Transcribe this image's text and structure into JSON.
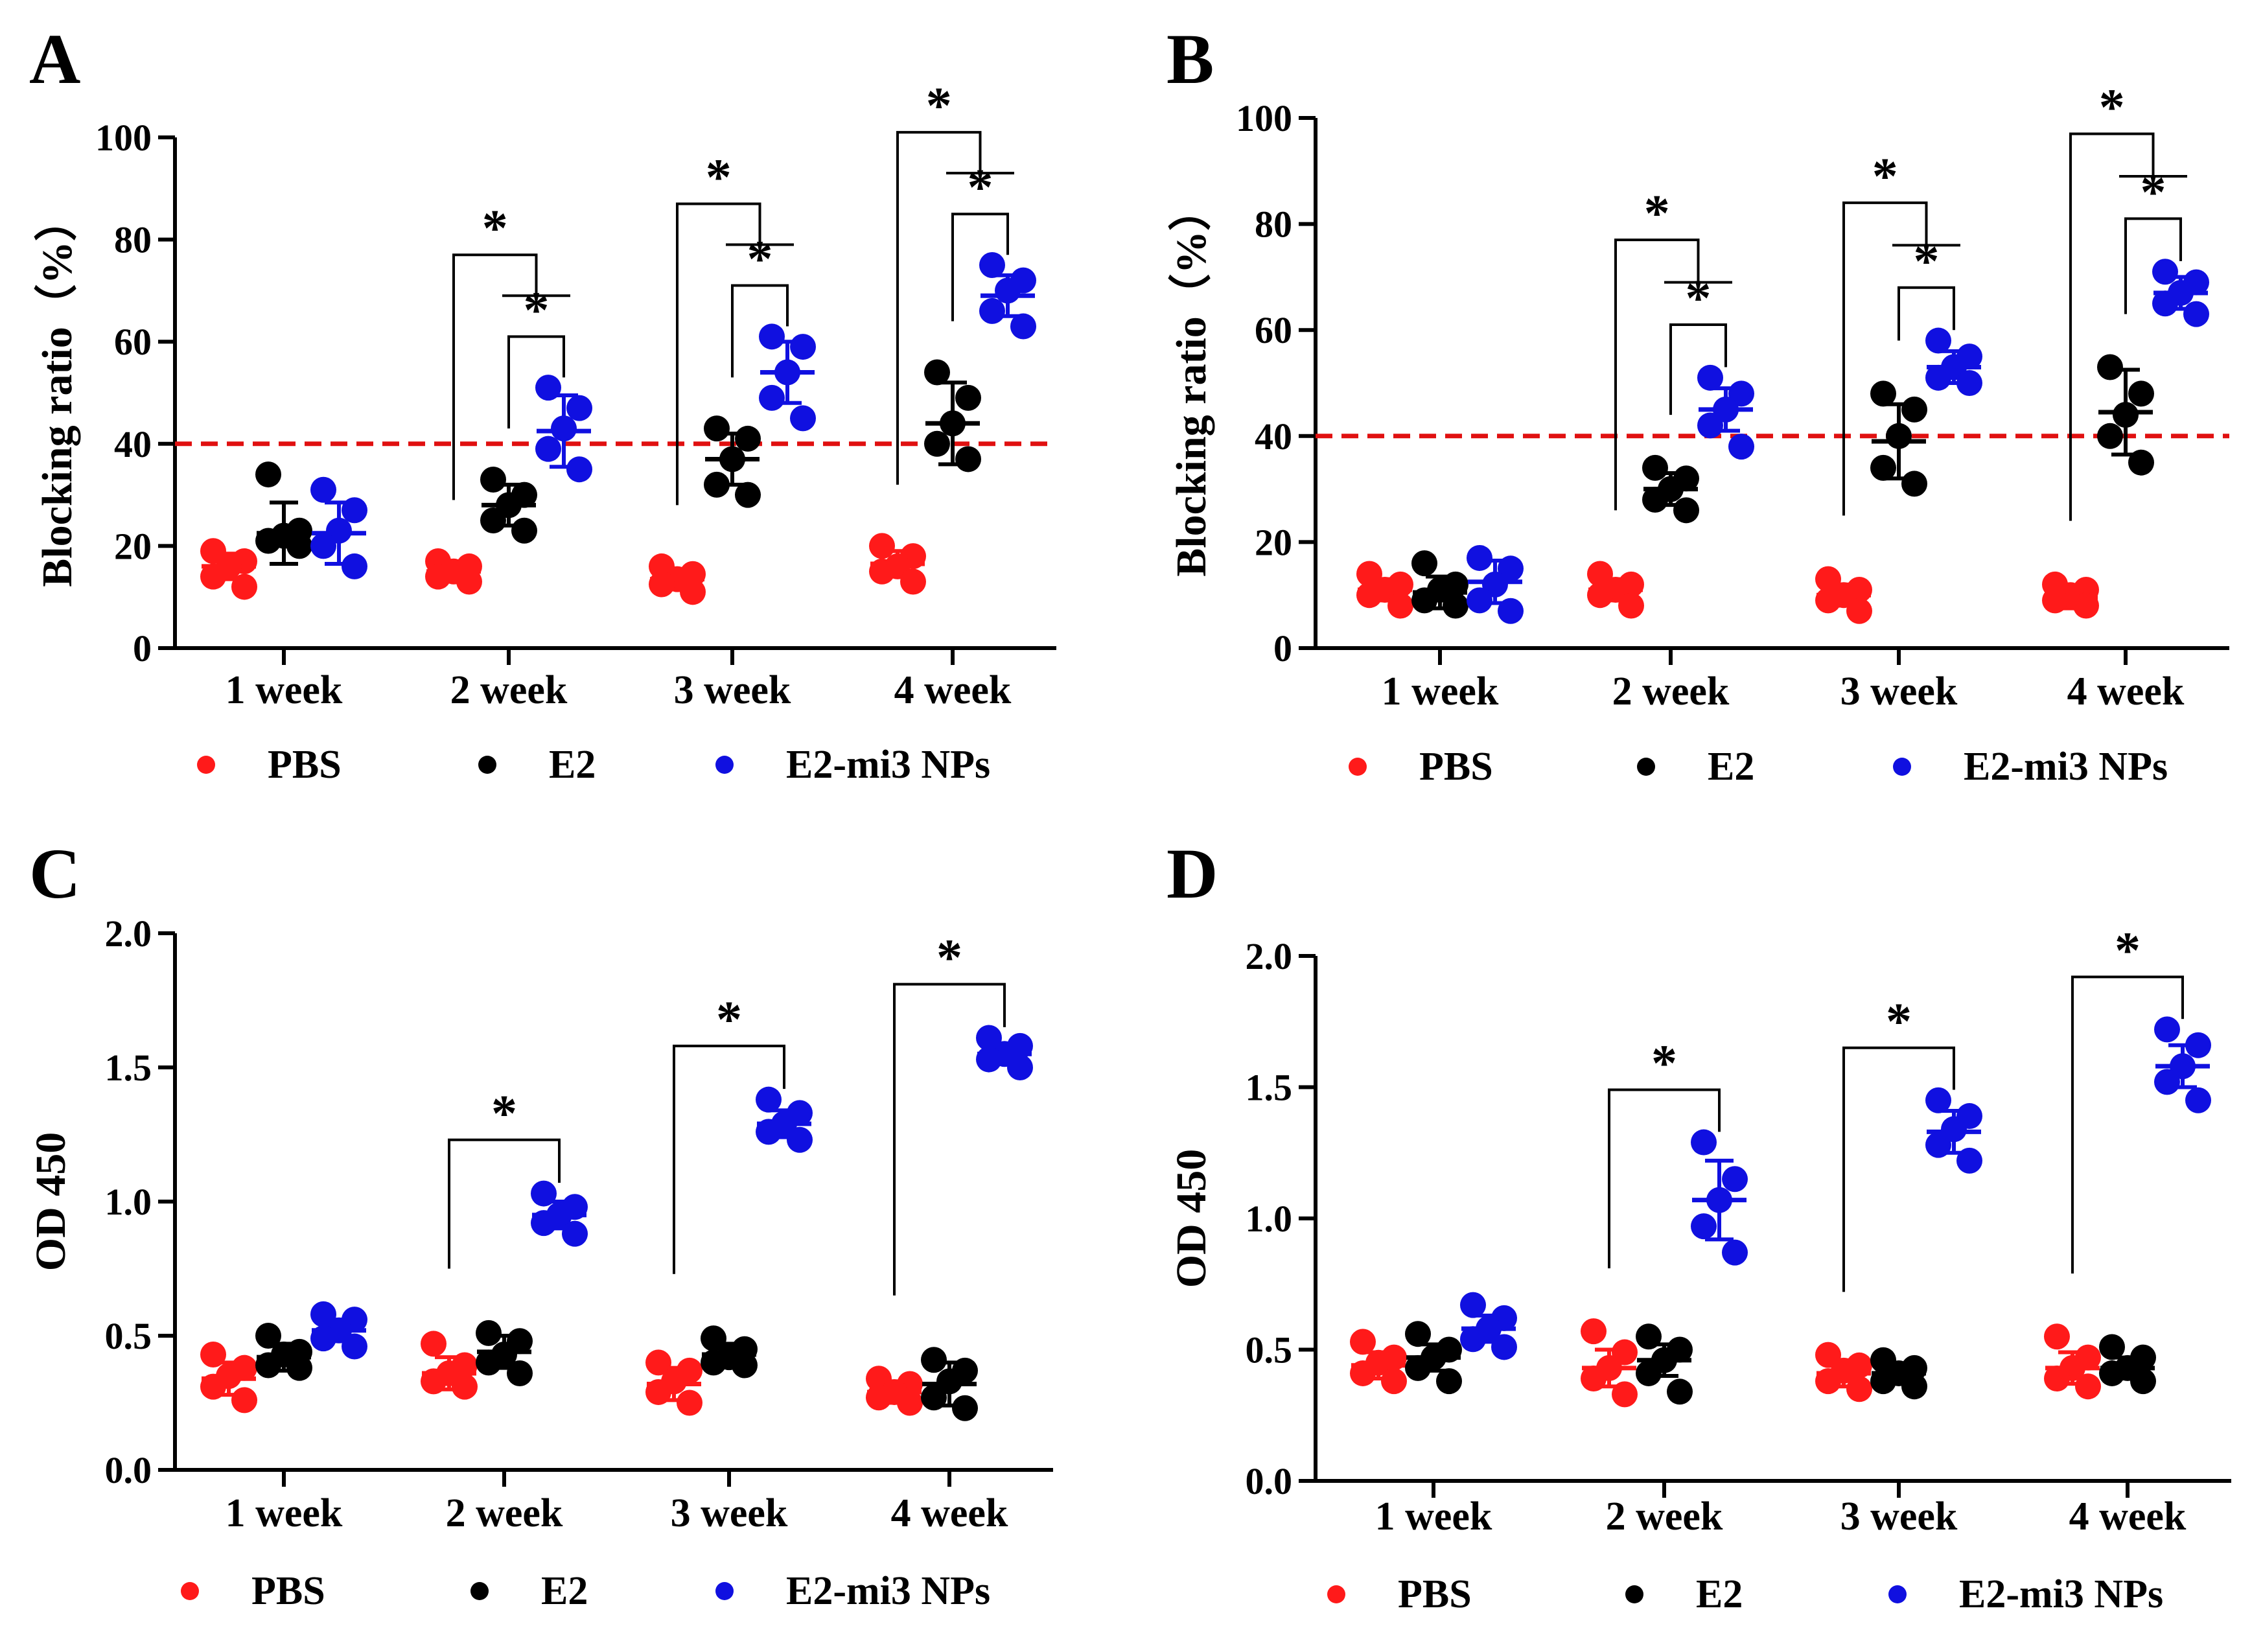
{
  "colors": {
    "PBS": "#ff1a1a",
    "E2": "#000000",
    "E2-mi3 NPs": "#1010e0",
    "threshold": "#e01010"
  },
  "legend": [
    "PBS",
    "E2",
    "E2-mi3 NPs"
  ],
  "chart_data": [
    {
      "panel": "A",
      "type": "scatter",
      "title": "",
      "ylabel": "Blocking ratio（%）",
      "xlabel": "",
      "ylim": [
        0,
        100
      ],
      "yticks": [
        "0",
        "20",
        "40",
        "60",
        "80",
        "100"
      ],
      "categories": [
        "1 week",
        "2 week",
        "3 week",
        "4 week"
      ],
      "threshold": 40,
      "grid": false,
      "series": [
        {
          "name": "PBS",
          "mean": [
            16,
            15,
            13.5,
            16.5
          ],
          "sd": [
            2.5,
            2,
            2,
            2.5
          ],
          "points": [
            [
              19,
              17,
              16,
              14,
              12
            ],
            [
              17,
              16,
              15,
              14,
              13
            ],
            [
              16,
              14.5,
              13.5,
              12.5,
              11
            ],
            [
              20,
              18,
              16,
              15,
              13
            ]
          ]
        },
        {
          "name": "E2",
          "mean": [
            22.5,
            28,
            37,
            44
          ],
          "sd": [
            6,
            4,
            5,
            8
          ],
          "points": [
            [
              34,
              23,
              22,
              21,
              20
            ],
            [
              33,
              30,
              28,
              25,
              23
            ],
            [
              43,
              41,
              37,
              32,
              30
            ],
            [
              54,
              49,
              44,
              40,
              37
            ]
          ]
        },
        {
          "name": "E2-mi3 NPs",
          "mean": [
            22.5,
            42.5,
            54,
            69
          ],
          "sd": [
            6,
            7,
            6,
            4
          ],
          "points": [
            [
              31,
              27,
              23,
              20,
              16
            ],
            [
              51,
              47,
              43,
              39,
              35
            ],
            [
              61,
              59,
              54,
              49,
              45
            ],
            [
              75,
              72,
              70,
              66,
              63
            ]
          ]
        }
      ],
      "brackets": [
        {
          "week": "2 week",
          "from": "E2",
          "to": "E2-mi3 NPs",
          "label": "*"
        },
        {
          "week": "2 week",
          "from": "PBS",
          "to": "E2 & E2-mi3 NPs",
          "label": "*"
        },
        {
          "week": "3 week",
          "from": "E2",
          "to": "E2-mi3 NPs",
          "label": "*"
        },
        {
          "week": "3 week",
          "from": "PBS",
          "to": "E2 & E2-mi3 NPs",
          "label": "*"
        },
        {
          "week": "4 week",
          "from": "E2",
          "to": "E2-mi3 NPs",
          "label": "*"
        },
        {
          "week": "4 week",
          "from": "PBS",
          "to": "E2 & E2-mi3 NPs",
          "label": "*"
        }
      ]
    },
    {
      "panel": "B",
      "type": "scatter",
      "title": "",
      "ylabel": "Blocking ratio（%）",
      "xlabel": "",
      "ylim": [
        0,
        100
      ],
      "yticks": [
        "0",
        "20",
        "40",
        "60",
        "80",
        "100"
      ],
      "categories": [
        "1 week",
        "2 week",
        "3 week",
        "4 week"
      ],
      "threshold": 40,
      "grid": false,
      "series": [
        {
          "name": "PBS",
          "mean": [
            11,
            11,
            10,
            9.5
          ],
          "sd": [
            2,
            2,
            2,
            2
          ],
          "points": [
            [
              14,
              12,
              11,
              10,
              8
            ],
            [
              14,
              12,
              11,
              10,
              8
            ],
            [
              13,
              11,
              10,
              9,
              7
            ],
            [
              12,
              11,
              10,
              9,
              8
            ]
          ]
        },
        {
          "name": "E2",
          "mean": [
            10.5,
            30,
            39,
            44.5
          ],
          "sd": [
            3,
            3,
            7,
            8
          ],
          "points": [
            [
              16,
              12,
              11,
              9,
              8
            ],
            [
              34,
              32,
              30,
              28,
              26
            ],
            [
              48,
              45,
              40,
              34,
              31
            ],
            [
              53,
              48,
              44,
              40,
              35
            ]
          ]
        },
        {
          "name": "E2-mi3 NPs",
          "mean": [
            12.5,
            45,
            53,
            67
          ],
          "sd": [
            4,
            4,
            3,
            3
          ],
          "points": [
            [
              17,
              15,
              12,
              9,
              7
            ],
            [
              51,
              48,
              45,
              42,
              38
            ],
            [
              58,
              55,
              53,
              51,
              50
            ],
            [
              71,
              69,
              67,
              65,
              63
            ]
          ]
        }
      ],
      "brackets": [
        {
          "week": "2 week",
          "from": "E2",
          "to": "E2-mi3 NPs",
          "label": "*"
        },
        {
          "week": "2 week",
          "from": "PBS",
          "to": "E2 & E2-mi3 NPs",
          "label": "*"
        },
        {
          "week": "3 week",
          "from": "E2",
          "to": "E2-mi3 NPs",
          "label": "*"
        },
        {
          "week": "3 week",
          "from": "PBS",
          "to": "E2 & E2-mi3 NPs",
          "label": "*"
        },
        {
          "week": "4 week",
          "from": "E2",
          "to": "E2-mi3 NPs",
          "label": "*"
        },
        {
          "week": "4 week",
          "from": "PBS",
          "to": "E2 & E2-mi3 NPs",
          "label": "*"
        }
      ]
    },
    {
      "panel": "C",
      "type": "scatter",
      "title": "",
      "ylabel": "OD 450",
      "xlabel": "",
      "ylim": [
        0,
        2
      ],
      "yticks": [
        "0.0",
        "0.5",
        "1.0",
        "1.5",
        "2.0"
      ],
      "categories": [
        "1 week",
        "2 week",
        "3 week",
        "4 week"
      ],
      "threshold": null,
      "grid": false,
      "series": [
        {
          "name": "PBS",
          "mean": [
            0.34,
            0.36,
            0.32,
            0.29
          ],
          "sd": [
            0.06,
            0.06,
            0.06,
            0.04
          ],
          "points": [
            [
              0.43,
              0.38,
              0.35,
              0.31,
              0.26
            ],
            [
              0.47,
              0.39,
              0.36,
              0.33,
              0.31
            ],
            [
              0.4,
              0.37,
              0.33,
              0.29,
              0.25
            ],
            [
              0.34,
              0.32,
              0.29,
              0.27,
              0.25
            ]
          ]
        },
        {
          "name": "E2",
          "mean": [
            0.42,
            0.44,
            0.43,
            0.32
          ],
          "sd": [
            0.05,
            0.06,
            0.04,
            0.08
          ],
          "points": [
            [
              0.5,
              0.44,
              0.43,
              0.39,
              0.38
            ],
            [
              0.51,
              0.48,
              0.43,
              0.4,
              0.36
            ],
            [
              0.49,
              0.45,
              0.42,
              0.4,
              0.39
            ],
            [
              0.41,
              0.37,
              0.33,
              0.27,
              0.23
            ]
          ]
        },
        {
          "name": "E2-mi3 NPs",
          "mean": [
            0.52,
            0.95,
            1.29,
            1.55
          ],
          "sd": [
            0.04,
            0.05,
            0.05,
            0.03
          ],
          "points": [
            [
              0.58,
              0.56,
              0.52,
              0.49,
              0.46
            ],
            [
              1.03,
              0.98,
              0.95,
              0.92,
              0.88
            ],
            [
              1.38,
              1.33,
              1.29,
              1.26,
              1.23
            ],
            [
              1.61,
              1.58,
              1.55,
              1.53,
              1.5
            ]
          ]
        }
      ],
      "brackets": [
        {
          "week": "2 week",
          "from": "PBS",
          "to": "E2-mi3 NPs",
          "label": "*"
        },
        {
          "week": "3 week",
          "from": "PBS",
          "to": "E2-mi3 NPs",
          "label": "*"
        },
        {
          "week": "4 week",
          "from": "PBS",
          "to": "E2-mi3 NPs",
          "label": "*"
        }
      ]
    },
    {
      "panel": "D",
      "type": "scatter",
      "title": "",
      "ylabel": "OD 450",
      "xlabel": "",
      "ylim": [
        0,
        2
      ],
      "yticks": [
        "0.0",
        "0.5",
        "1.0",
        "1.5",
        "2.0"
      ],
      "categories": [
        "1 week",
        "2 week",
        "3 week",
        "4 week"
      ],
      "threshold": null,
      "grid": false,
      "series": [
        {
          "name": "PBS",
          "mean": [
            0.44,
            0.43,
            0.41,
            0.43
          ],
          "sd": [
            0.05,
            0.07,
            0.05,
            0.06
          ],
          "points": [
            [
              0.53,
              0.47,
              0.45,
              0.41,
              0.38
            ],
            [
              0.57,
              0.49,
              0.43,
              0.39,
              0.33
            ],
            [
              0.48,
              0.44,
              0.42,
              0.38,
              0.35
            ],
            [
              0.55,
              0.47,
              0.43,
              0.39,
              0.36
            ]
          ]
        },
        {
          "name": "E2",
          "mean": [
            0.47,
            0.46,
            0.41,
            0.43
          ],
          "sd": [
            0.05,
            0.06,
            0.03,
            0.04
          ],
          "points": [
            [
              0.56,
              0.5,
              0.47,
              0.43,
              0.38
            ],
            [
              0.55,
              0.5,
              0.46,
              0.41,
              0.34
            ],
            [
              0.46,
              0.43,
              0.41,
              0.38,
              0.36
            ],
            [
              0.51,
              0.47,
              0.43,
              0.41,
              0.38
            ]
          ]
        },
        {
          "name": "E2-mi3 NPs",
          "mean": [
            0.58,
            1.07,
            1.33,
            1.58
          ],
          "sd": [
            0.05,
            0.15,
            0.08,
            0.08
          ],
          "points": [
            [
              0.67,
              0.62,
              0.58,
              0.54,
              0.51
            ],
            [
              1.29,
              1.15,
              1.07,
              0.97,
              0.87
            ],
            [
              1.45,
              1.39,
              1.34,
              1.28,
              1.22
            ],
            [
              1.72,
              1.66,
              1.58,
              1.52,
              1.45
            ]
          ]
        }
      ],
      "brackets": [
        {
          "week": "2 week",
          "from": "PBS",
          "to": "E2-mi3 NPs",
          "label": "*"
        },
        {
          "week": "3 week",
          "from": "PBS",
          "to": "E2-mi3 NPs",
          "label": "*"
        },
        {
          "week": "4 week",
          "from": "PBS",
          "to": "E2-mi3 NPs",
          "label": "*"
        }
      ]
    }
  ]
}
